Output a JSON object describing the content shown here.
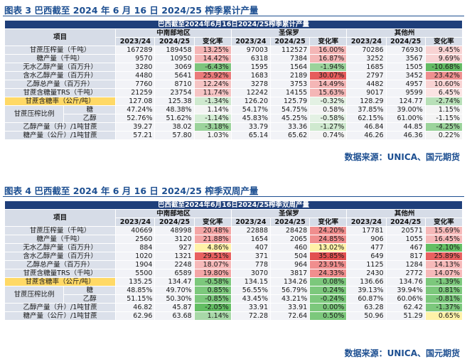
{
  "fig3": {
    "title": "图表 3  巴西截至 2024 年 6 月 16 日 2024/25 榨季累计产量",
    "banner": "巴西截至2024年6月16日2024/25榨季累计产量",
    "item_header": "项目",
    "regions": [
      "中南部地区",
      "圣保罗",
      "其他州"
    ],
    "cols": [
      "2023/24",
      "2024/25",
      "变化率"
    ],
    "ratio_group": "甘蔗压榨比例",
    "rows": [
      {
        "label": "甘蔗压榨量（千吨）",
        "vals": [
          [
            "167289",
            "189458",
            "13.25%",
            "#f4b6b6"
          ],
          [
            "97003",
            "112527",
            "16.00%",
            "#f4b6b6"
          ],
          [
            "70286",
            "76930",
            "9.45%",
            "#f8d3d3"
          ]
        ]
      },
      {
        "label": "糖产量（千吨）",
        "vals": [
          [
            "9570",
            "10950",
            "14.42%",
            "#f4b6b6"
          ],
          [
            "6318",
            "7384",
            "16.87%",
            "#f4b6b6"
          ],
          [
            "3252",
            "3567",
            "9.69%",
            "#f8d3d3"
          ]
        ]
      },
      {
        "label": "无水乙醇产量（百万升）",
        "vals": [
          [
            "3280",
            "3069",
            "-6.43%",
            "#7cc47c"
          ],
          [
            "1595",
            "1564",
            "-1.94%",
            "#9bd39b"
          ],
          [
            "1685",
            "1505",
            "-10.68%",
            "#63ba63"
          ]
        ]
      },
      {
        "label": "含水乙醇产量（百万升）",
        "vals": [
          [
            "4480",
            "5641",
            "25.92%",
            "#ea7a7a"
          ],
          [
            "1683",
            "2189",
            "30.07%",
            "#e65c5c"
          ],
          [
            "2797",
            "3452",
            "23.42%",
            "#ee8f8f"
          ]
        ]
      },
      {
        "label": "乙醇总产量（百万升）",
        "vals": [
          [
            "7760",
            "8710",
            "12.24%",
            "#f5c4c4"
          ],
          [
            "3278",
            "3753",
            "14.49%",
            "#f4b6b6"
          ],
          [
            "4482",
            "4957",
            "10.60%",
            "#f8d3d3"
          ]
        ]
      },
      {
        "label": "甘蔗含糖量TRS（千吨）",
        "vals": [
          [
            "21259",
            "23754",
            "11.74%",
            "#f5c4c4"
          ],
          [
            "12242",
            "14155",
            "15.63%",
            "#f4b6b6"
          ],
          [
            "9017",
            "9599",
            "6.45%",
            "#fbe3e3"
          ]
        ]
      },
      {
        "label": "甘蔗含糖率（公斤/吨）",
        "highlight": true,
        "vals": [
          [
            "127.08",
            "125.38",
            "-1.34%",
            "#cfe9cf"
          ],
          [
            "126.20",
            "125.79",
            "-0.32%",
            "#e3f1e3"
          ],
          [
            "128.29",
            "124.77",
            "-2.74%",
            "#b8e0b8"
          ]
        ]
      },
      {
        "label": "糖",
        "ratio": true,
        "first": true,
        "vals": [
          [
            "47.24%",
            "48.38%",
            "1.14%",
            "#f4f4f4"
          ],
          [
            "54.17%",
            "54.75%",
            "0.58%",
            "#f4f4f4"
          ],
          [
            "37.85%",
            "39.00%",
            "1.15%",
            "#f4f4f4"
          ]
        ]
      },
      {
        "label": "乙醇",
        "ratio": true,
        "vals": [
          [
            "52.76%",
            "51.62%",
            "-1.14%",
            "#d5edd5"
          ],
          [
            "45.83%",
            "45.25%",
            "-0.58%",
            "#e3f1e3"
          ],
          [
            "62.15%",
            "61.00%",
            "-1.15%",
            "#f4f4f4"
          ]
        ]
      },
      {
        "label": "乙醇产量（升）/1吨甘蔗",
        "vals": [
          [
            "39.27",
            "38.02",
            "-3.18%",
            "#9bd39b"
          ],
          [
            "33.79",
            "33.36",
            "-1.27%",
            "#cfe9cf"
          ],
          [
            "46.84",
            "44.85",
            "-4.25%",
            "#9bd39b"
          ]
        ]
      },
      {
        "label": "糖产量（公斤）/1吨甘蔗",
        "vals": [
          [
            "57.21",
            "57.80",
            "1.03%",
            "#f4f4f4"
          ],
          [
            "65.14",
            "65.62",
            "0.74%",
            "#f4f4f4"
          ],
          [
            "46.26",
            "46.36",
            "0.22%",
            "#f4f4f4"
          ]
        ]
      }
    ]
  },
  "fig4": {
    "title": "图表 4  巴西截至 2024 年 6 月 16 日 2024/25 榨季双周产量",
    "banner": "巴西截至2024年6月16日2024/25榨季双周产量",
    "item_header": "项目",
    "regions": [
      "中南部地区",
      "圣保罗",
      "其他州"
    ],
    "cols": [
      "2023/24",
      "2024/25",
      "变化率"
    ],
    "ratio_group": "甘蔗压榨比例",
    "rows": [
      {
        "label": "甘蔗压榨量（千吨）",
        "vals": [
          [
            "40669",
            "48998",
            "20.48%",
            "#f4a6a6"
          ],
          [
            "22888",
            "28428",
            "24.20%",
            "#f08e8e"
          ],
          [
            "17781",
            "20571",
            "15.69%",
            "#f6b9b9"
          ]
        ]
      },
      {
        "label": "糖产量（千吨）",
        "vals": [
          [
            "2560",
            "3120",
            "21.88%",
            "#f4a6a6"
          ],
          [
            "1654",
            "2065",
            "24.85%",
            "#f08e8e"
          ],
          [
            "906",
            "1055",
            "16.45%",
            "#f6b9b9"
          ]
        ]
      },
      {
        "label": "无水乙醇产量（百万升）",
        "vals": [
          [
            "884",
            "927",
            "4.86%",
            "#fff2a8"
          ],
          [
            "407",
            "460",
            "13.02%",
            "#fff2a8"
          ],
          [
            "477",
            "467",
            "-2.10%",
            "#63be63"
          ]
        ]
      },
      {
        "label": "含水乙醇产量（百万升）",
        "vals": [
          [
            "1020",
            "1321",
            "29.51%",
            "#e86060"
          ],
          [
            "371",
            "504",
            "35.85%",
            "#e25050"
          ],
          [
            "649",
            "817",
            "25.89%",
            "#e86060"
          ]
        ]
      },
      {
        "label": "乙醇总产量（百万升）",
        "vals": [
          [
            "1904",
            "2248",
            "18.07%",
            "#f6b9b9"
          ],
          [
            "778",
            "964",
            "23.91%",
            "#f08e8e"
          ],
          [
            "1125",
            "1284",
            "14.13%",
            "#f6b9b9"
          ]
        ]
      },
      {
        "label": "甘蔗含糖量TRS（千吨）",
        "vals": [
          [
            "5500",
            "6589",
            "19.80%",
            "#f4a6a6"
          ],
          [
            "3070",
            "3817",
            "24.33%",
            "#f08e8e"
          ],
          [
            "2430",
            "2772",
            "14.07%",
            "#f6b9b9"
          ]
        ]
      },
      {
        "label": "甘蔗含糖率（公斤/吨）",
        "highlight": true,
        "vals": [
          [
            "135.25",
            "134.47",
            "-0.58%",
            "#7cc87c"
          ],
          [
            "134.15",
            "134.26",
            "0.08%",
            "#7cc87c"
          ],
          [
            "136.66",
            "134.76",
            "-1.39%",
            "#7cc87c"
          ]
        ]
      },
      {
        "label": "糖",
        "ratio": true,
        "first": true,
        "vals": [
          [
            "48.85%",
            "49.70%",
            "0.85%",
            "#7cc87c"
          ],
          [
            "56.55%",
            "56.79%",
            "0.24%",
            "#7cc87c"
          ],
          [
            "39.13%",
            "39.94%",
            "0.81%",
            "#7cc87c"
          ]
        ]
      },
      {
        "label": "乙醇",
        "ratio": true,
        "vals": [
          [
            "51.15%",
            "50.30%",
            "-0.85%",
            "#7cc87c"
          ],
          [
            "43.45%",
            "43.21%",
            "-0.24%",
            "#7cc87c"
          ],
          [
            "60.87%",
            "60.06%",
            "-0.81%",
            "#7cc87c"
          ]
        ]
      },
      {
        "label": "乙醇产量（升）/1吨甘蔗",
        "vals": [
          [
            "46.82",
            "45.87",
            "-2.05%",
            "#63be63"
          ],
          [
            "33.91",
            "33.91",
            "0.00%",
            "#7cc87c"
          ],
          [
            "63.28",
            "62.42",
            "-1.37%",
            "#7cc87c"
          ]
        ]
      },
      {
        "label": "糖产量（公斤）/1吨甘蔗",
        "vals": [
          [
            "62.96",
            "63.68",
            "1.14%",
            "#a8d8a8"
          ],
          [
            "72.28",
            "72.64",
            "0.50%",
            "#7cc87c"
          ],
          [
            "50.96",
            "51.29",
            "0.65%",
            "#fff2a8"
          ]
        ]
      }
    ]
  },
  "source": "数据来源：UNICA、国元期货"
}
